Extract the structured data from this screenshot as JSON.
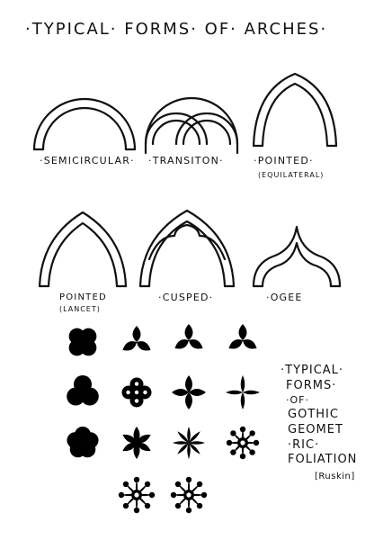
{
  "title": "·TYPICAL· FORMS· OF· ARCHES·",
  "arches": [
    {
      "label": "·SEMICIRCULAR·"
    },
    {
      "label": "·TRANSITON·"
    },
    {
      "label": "·POINTED·",
      "sub": "(EQUILATERAL)"
    },
    {
      "label": "POINTED",
      "sub": "(LANCET)"
    },
    {
      "label": "·CUSPED·"
    },
    {
      "label": "·OGEE"
    }
  ],
  "foliation": {
    "lines": [
      "·TYPICAL·",
      "FORMS·",
      "·OF·",
      "GOTHIC",
      "GEOMET",
      "·RIC·",
      "FOLIATION"
    ],
    "credit": "[Ruskin]",
    "shapes": [
      "quatrefoil-lobed",
      "trefoil-pointed",
      "trefoil-pointed-alt",
      "trefoil-pointed-alt2",
      "trefoil-lobed",
      "quatrefoil-pierced",
      "quatrefoil-pointed",
      "quatrefoil-pointed-thin",
      "cinquefoil-lobed",
      "cinquefoil-pointed",
      "sexfoil-pointed",
      "octofoil-pierced",
      "multifoil-pierced",
      "multifoil-pierced-alt"
    ]
  }
}
